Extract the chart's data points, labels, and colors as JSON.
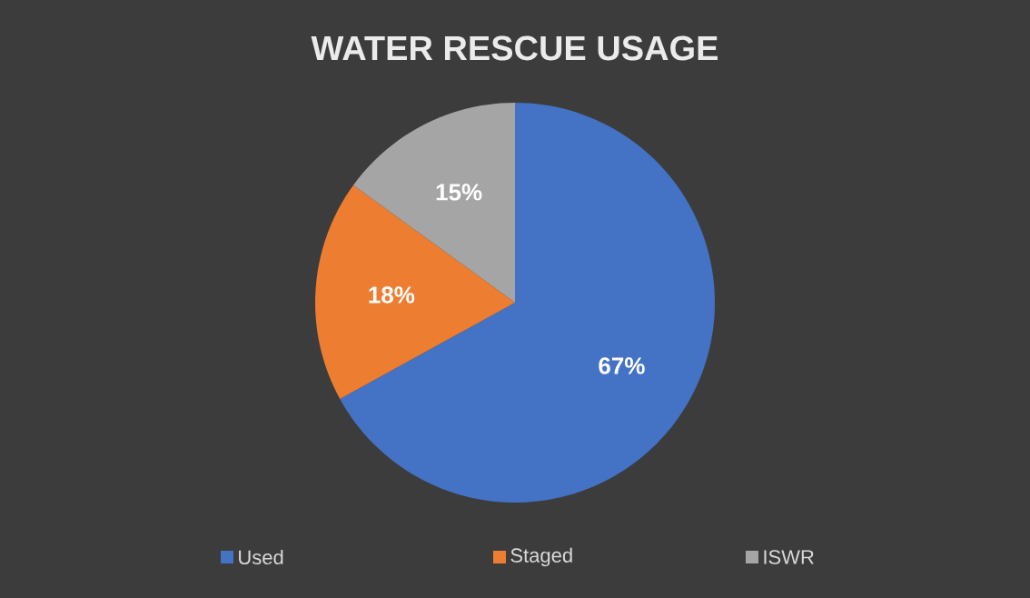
{
  "chart_data": {
    "type": "pie",
    "title": "WATER RESCUE USAGE",
    "categories": [
      "Used",
      "Staged",
      "ISWR"
    ],
    "values": [
      67,
      18,
      15
    ],
    "colors": [
      "#4472c4",
      "#ed7d31",
      "#a5a5a5"
    ],
    "value_labels": [
      "67%",
      "18%",
      "15%"
    ],
    "legend": "bottom"
  }
}
